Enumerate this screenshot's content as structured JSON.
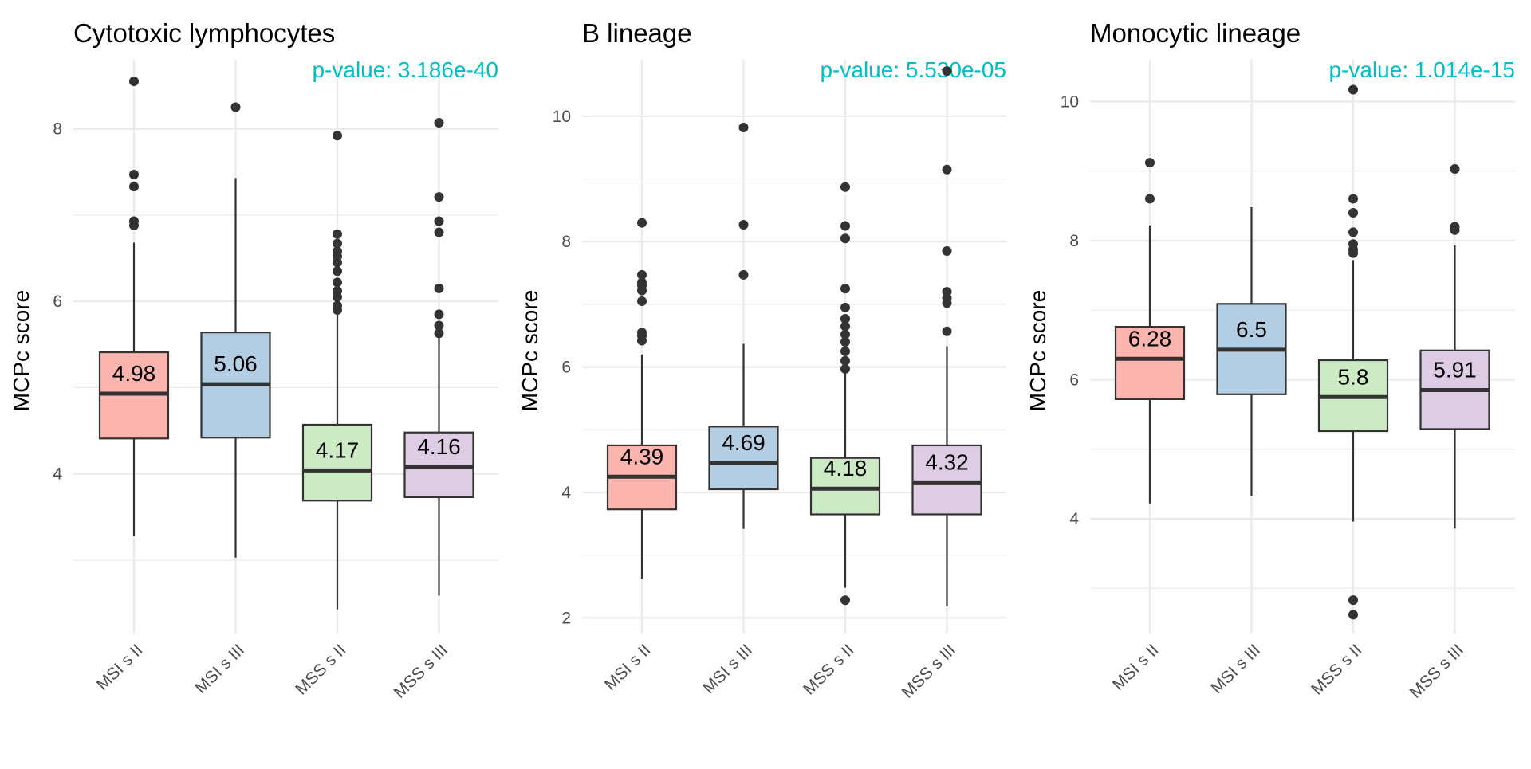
{
  "chart_data": [
    {
      "type": "boxplot",
      "title": "Cytotoxic lymphocytes",
      "ylabel": "MCPc score",
      "annotation": "p-value: 3.186e-40",
      "ylim": [
        2.15,
        8.8
      ],
      "yticks": [
        4,
        6,
        8
      ],
      "categories": [
        "MSI s II",
        "MSI s III",
        "MSS s II",
        "MSS s III"
      ],
      "boxes": [
        {
          "q1": 4.41,
          "median": 4.93,
          "q3": 5.41,
          "whisker_low": 3.28,
          "whisker_high": 6.68,
          "median_label": "4.98",
          "outliers": [
            6.88,
            6.93,
            7.33,
            7.47,
            8.55
          ]
        },
        {
          "q1": 4.42,
          "median": 5.04,
          "q3": 5.64,
          "whisker_low": 3.03,
          "whisker_high": 7.43,
          "median_label": "5.06",
          "outliers": [
            8.25
          ]
        },
        {
          "q1": 3.69,
          "median": 4.04,
          "q3": 4.57,
          "whisker_low": 2.43,
          "whisker_high": 5.86,
          "median_label": "4.17",
          "outliers": [
            5.9,
            5.95,
            6.05,
            6.12,
            6.22,
            6.35,
            6.45,
            6.52,
            6.58,
            6.67,
            6.78,
            7.92
          ]
        },
        {
          "q1": 3.73,
          "median": 4.08,
          "q3": 4.48,
          "whisker_low": 2.59,
          "whisker_high": 5.58,
          "median_label": "4.16",
          "outliers": [
            5.63,
            5.72,
            5.85,
            6.15,
            6.8,
            6.93,
            7.21,
            8.07
          ]
        }
      ]
    },
    {
      "type": "boxplot",
      "title": "B lineage",
      "ylabel": "MCPc score",
      "annotation": "p-value: 5.530e-05",
      "ylim": [
        1.75,
        10.9
      ],
      "yticks": [
        2,
        4,
        6,
        8,
        10
      ],
      "categories": [
        "MSI s II",
        "MSI s III",
        "MSS s II",
        "MSS s III"
      ],
      "boxes": [
        {
          "q1": 3.73,
          "median": 4.25,
          "q3": 4.75,
          "whisker_low": 2.62,
          "whisker_high": 6.2,
          "median_label": "4.39",
          "outliers": [
            6.42,
            6.5,
            6.55,
            7.05,
            7.22,
            7.3,
            7.35,
            7.47,
            8.3
          ]
        },
        {
          "q1": 4.05,
          "median": 4.47,
          "q3": 5.05,
          "whisker_low": 3.42,
          "whisker_high": 6.37,
          "median_label": "4.69",
          "outliers": [
            7.47,
            8.27,
            9.82
          ]
        },
        {
          "q1": 3.65,
          "median": 4.06,
          "q3": 4.55,
          "whisker_low": 2.48,
          "whisker_high": 5.92,
          "median_label": "4.18",
          "outliers": [
            2.28,
            5.97,
            6.1,
            6.25,
            6.4,
            6.52,
            6.65,
            6.77,
            6.95,
            7.25,
            8.05,
            8.25,
            8.87
          ]
        },
        {
          "q1": 3.65,
          "median": 4.16,
          "q3": 4.75,
          "whisker_low": 2.18,
          "whisker_high": 6.33,
          "median_label": "4.32",
          "outliers": [
            6.57,
            7.02,
            7.1,
            7.2,
            7.85,
            9.15,
            10.72
          ]
        }
      ]
    },
    {
      "type": "boxplot",
      "title": "Monocytic lineage",
      "ylabel": "MCPc score",
      "annotation": "p-value: 1.014e-15",
      "ylim": [
        2.35,
        10.6
      ],
      "yticks": [
        4,
        6,
        8,
        10
      ],
      "categories": [
        "MSI s II",
        "MSI s III",
        "MSS s II",
        "MSS s III"
      ],
      "boxes": [
        {
          "q1": 5.72,
          "median": 6.3,
          "q3": 6.76,
          "whisker_low": 4.22,
          "whisker_high": 8.22,
          "median_label": "6.28",
          "outliers": [
            8.6,
            9.12
          ]
        },
        {
          "q1": 5.79,
          "median": 6.43,
          "q3": 7.09,
          "whisker_low": 4.33,
          "whisker_high": 8.48,
          "median_label": "6.5",
          "outliers": []
        },
        {
          "q1": 5.26,
          "median": 5.75,
          "q3": 6.28,
          "whisker_low": 3.96,
          "whisker_high": 7.72,
          "median_label": "5.8",
          "outliers": [
            2.62,
            2.83,
            7.82,
            7.87,
            7.95,
            8.12,
            8.4,
            8.6,
            10.17
          ]
        },
        {
          "q1": 5.29,
          "median": 5.85,
          "q3": 6.42,
          "whisker_low": 3.86,
          "whisker_high": 7.93,
          "median_label": "5.91",
          "outliers": [
            8.15,
            8.2,
            9.03
          ]
        }
      ]
    }
  ],
  "colors": {
    "box_fills": [
      "#fbb4ae",
      "#b3cde3",
      "#ccebc5",
      "#decbe4"
    ],
    "annotation": "#00bfc4",
    "grid": "#ebebeb",
    "outline": "#333333"
  }
}
